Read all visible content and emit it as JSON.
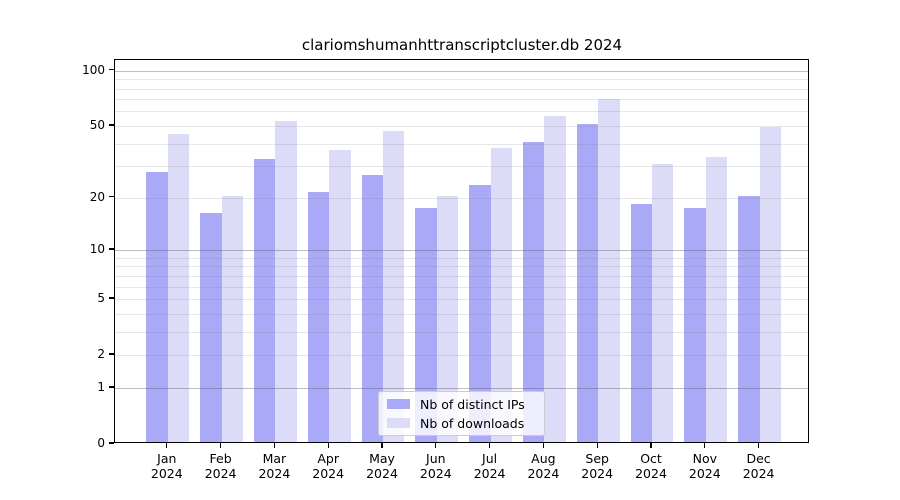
{
  "chart_data": {
    "type": "bar",
    "title": "clariomshumanhttranscriptcluster.db 2024",
    "categories": [
      "Jan",
      "Feb",
      "Mar",
      "Apr",
      "May",
      "Jun",
      "Jul",
      "Aug",
      "Sep",
      "Oct",
      "Nov",
      "Dec"
    ],
    "year_label": "2024",
    "series": [
      {
        "name": "Nb of distinct IPs",
        "color": "#a9a9f7",
        "values": [
          27,
          16,
          32,
          21,
          26,
          17,
          23,
          40,
          50,
          18,
          17,
          20
        ]
      },
      {
        "name": "Nb of downloads",
        "color": "#dcdcf9",
        "values": [
          44,
          20,
          52,
          36,
          46,
          20,
          37,
          55,
          68,
          30,
          33,
          48
        ]
      }
    ],
    "yscale": "log(1+v)",
    "yticks": [
      100,
      50,
      20,
      10,
      5,
      2,
      1,
      0
    ],
    "minor_gridlines": [
      2,
      3,
      4,
      5,
      6,
      7,
      8,
      9,
      20,
      30,
      40,
      50,
      60,
      70,
      80,
      90
    ],
    "major_gridlines": [
      1,
      10,
      100
    ],
    "ylim": [
      0,
      110
    ],
    "xlabel": "",
    "ylabel": "",
    "grid": true,
    "legend_position": "bottom-center-inside",
    "frame_color": "#000000",
    "background_color": "#ffffff"
  }
}
